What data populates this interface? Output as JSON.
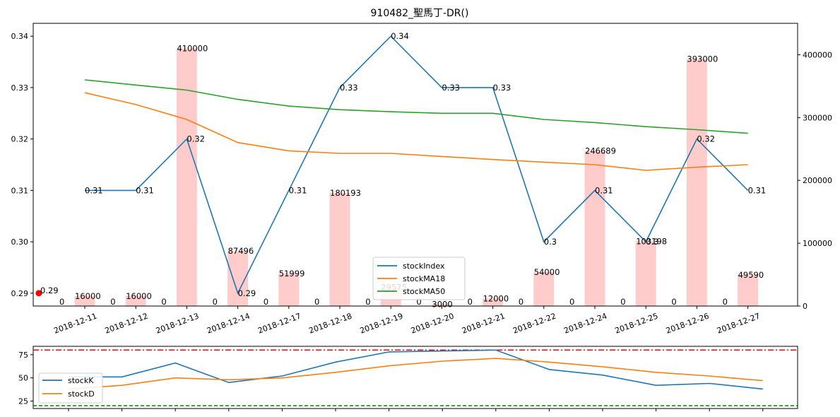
{
  "chart_data": [
    {
      "type": "bar+line",
      "title": "910482_聖馬丁-DR()",
      "categories": [
        "2018-12-11",
        "2018-12-12",
        "2018-12-13",
        "2018-12-14",
        "2018-12-17",
        "2018-12-18",
        "2018-12-19",
        "2018-12-20",
        "2018-12-21",
        "2018-12-22",
        "2018-12-24",
        "2018-12-25",
        "2018-12-26",
        "2018-12-27"
      ],
      "ylim": [
        0.2875,
        0.3425
      ],
      "yticks": [
        "0.29",
        "0.30",
        "0.31",
        "0.32",
        "0.33",
        "0.34"
      ],
      "y2lim": [
        0,
        450000
      ],
      "y2ticks": [
        "0",
        "100000",
        "200000",
        "300000",
        "400000"
      ],
      "series": [
        {
          "name": "stockIndex",
          "color": "#1f77b4",
          "values": [
            0.31,
            0.31,
            0.32,
            0.29,
            0.31,
            0.33,
            0.34,
            0.33,
            0.33,
            0.3,
            0.31,
            0.3,
            0.32,
            0.31
          ],
          "labels": [
            "0.31",
            "0.31",
            "0.32",
            "0.29",
            "0.31",
            "0.33",
            "0.34",
            "0.33",
            "0.33",
            "0.3",
            "0.31",
            "0.3",
            "0.32",
            "0.31"
          ]
        },
        {
          "name": "stockMA18",
          "color": "#ff7f0e",
          "values": [
            0.329,
            0.3267,
            0.3238,
            0.3193,
            0.3177,
            0.3172,
            0.3172,
            0.3166,
            0.316,
            0.3155,
            0.315,
            0.3139,
            0.3145,
            0.315
          ]
        },
        {
          "name": "stockMA50",
          "color": "#2ca02c",
          "values": [
            0.3315,
            0.3305,
            0.3295,
            0.3277,
            0.3264,
            0.3257,
            0.3253,
            0.325,
            0.325,
            0.3238,
            0.3232,
            0.3224,
            0.3218,
            0.3211
          ]
        }
      ],
      "volume": {
        "color": "#ffcccc",
        "values": [
          16000,
          16000,
          410000,
          87496,
          51999,
          180193,
          29575,
          3000,
          12000,
          54000,
          246689,
          103198,
          393000,
          49590
        ],
        "labels": [
          "16000",
          "16000",
          "410000",
          "87496",
          "51999",
          "180193",
          "29575",
          "3000",
          "12000",
          "54000",
          "246689",
          "103198",
          "393000",
          "49590"
        ]
      },
      "zero_labels": [
        "0",
        "0",
        "0",
        "0",
        "0",
        "0",
        "0",
        "0",
        "0",
        "0",
        "0",
        "0",
        "0",
        "0"
      ],
      "start_point": {
        "value": 0.29,
        "label": "0.29",
        "color": "#ff0000"
      },
      "legend": {
        "placement": "lower-center",
        "entries": [
          "stockIndex",
          "stockMA18",
          "stockMA50"
        ]
      }
    },
    {
      "type": "line",
      "categories_count": 14,
      "ylim": [
        17,
        84
      ],
      "yticks": [
        "25",
        "50",
        "75"
      ],
      "hlines": [
        {
          "value": 80,
          "color": "#ff0000",
          "style": "dashdot"
        },
        {
          "value": 20,
          "color": "#008000",
          "style": "dashed"
        }
      ],
      "series": [
        {
          "name": "stockK",
          "color": "#1f77b4",
          "values": [
            51,
            51,
            66,
            45,
            52,
            67,
            78,
            79,
            80,
            59,
            53,
            42,
            44,
            38
          ]
        },
        {
          "name": "stockD",
          "color": "#ff7f0e",
          "values": [
            38,
            42,
            50,
            48,
            50,
            56,
            63,
            68,
            71,
            67,
            62,
            56,
            52,
            47
          ]
        }
      ],
      "legend": {
        "placement": "lower-left",
        "entries": [
          "stockK",
          "stockD"
        ]
      }
    }
  ]
}
